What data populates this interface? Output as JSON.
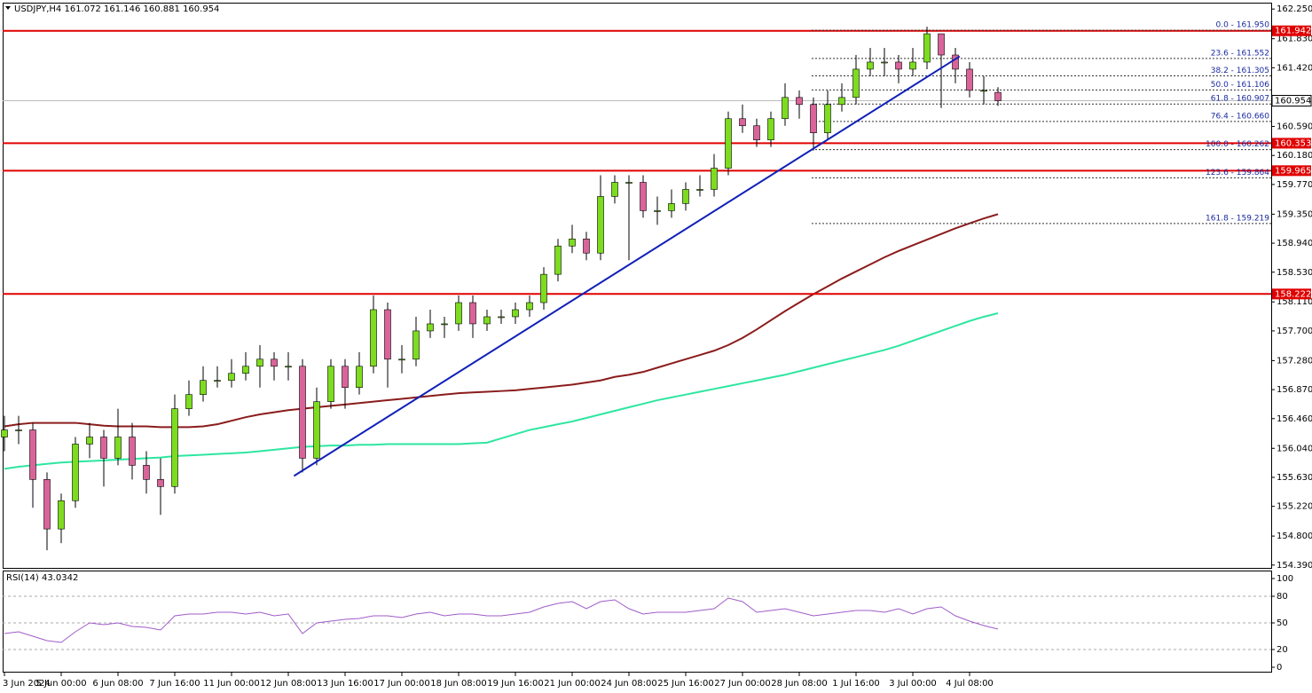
{
  "chart_data": [
    {
      "type": "candlestick",
      "title": "USDJPY,H4  161.072 161.146 160.881 160.954",
      "categories": [
        "3 Jun 2024",
        null,
        null,
        null,
        "5 Jun 00:00",
        null,
        null,
        null,
        "6 Jun 08:00",
        null,
        null,
        null,
        "7 Jun 16:00",
        null,
        null,
        null,
        "11 Jun 00:00",
        null,
        null,
        null,
        "12 Jun 08:00",
        null,
        null,
        null,
        "13 Jun 16:00",
        null,
        null,
        null,
        "17 Jun 00:00",
        null,
        null,
        null,
        "18 Jun 08:00",
        null,
        null,
        null,
        "19 Jun 16:00",
        null,
        null,
        null,
        "21 Jun 00:00",
        null,
        null,
        null,
        "24 Jun 08:00",
        null,
        null,
        null,
        "25 Jun 16:00",
        null,
        null,
        null,
        "27 Jun 00:00",
        null,
        null,
        null,
        "28 Jun 08:00",
        null,
        null,
        null,
        "1 Jul 16:00",
        null,
        null,
        null,
        "3 Jul 00:00",
        null,
        null,
        null,
        "4 Jul 08:00",
        null,
        null
      ],
      "open": [
        156.2,
        156.3,
        156.3,
        155.6,
        154.9,
        155.3,
        156.1,
        156.2,
        155.9,
        156.2,
        155.8,
        155.6,
        155.5,
        156.6,
        156.8,
        157.0,
        157.0,
        157.1,
        157.2,
        157.3,
        157.2,
        157.2,
        155.9,
        156.7,
        157.2,
        156.9,
        157.2,
        158.0,
        157.3,
        157.3,
        157.7,
        157.8,
        157.8,
        158.1,
        157.8,
        157.9,
        157.9,
        158.0,
        158.1,
        158.5,
        158.9,
        159.0,
        158.8,
        159.6,
        159.8,
        159.8,
        159.4,
        159.4,
        159.5,
        159.7,
        159.7,
        160.0,
        160.7,
        160.6,
        160.4,
        160.7,
        161.0,
        160.9,
        160.5,
        160.9,
        161.0,
        161.4,
        161.5,
        161.5,
        161.4,
        161.5,
        161.9,
        161.6,
        161.4,
        161.1,
        161.072
      ],
      "high": [
        156.5,
        156.5,
        156.4,
        155.7,
        155.4,
        156.2,
        156.4,
        156.3,
        156.6,
        156.4,
        156.0,
        155.9,
        156.8,
        157.0,
        157.2,
        157.2,
        157.3,
        157.4,
        157.5,
        157.4,
        157.4,
        157.3,
        156.9,
        157.3,
        157.3,
        157.4,
        158.2,
        158.1,
        157.5,
        157.9,
        158.0,
        157.9,
        158.2,
        158.2,
        158.0,
        158.0,
        158.1,
        158.2,
        158.6,
        159.0,
        159.2,
        159.1,
        159.9,
        159.9,
        159.9,
        159.9,
        159.6,
        159.7,
        159.8,
        159.9,
        160.2,
        160.8,
        160.9,
        160.7,
        160.8,
        161.2,
        161.1,
        161.0,
        161.1,
        161.2,
        161.6,
        161.7,
        161.7,
        161.6,
        161.7,
        162.0,
        161.9,
        161.7,
        161.5,
        161.3,
        161.146
      ],
      "low": [
        156.0,
        156.1,
        155.2,
        154.6,
        154.7,
        155.2,
        155.9,
        155.5,
        155.8,
        155.6,
        155.4,
        155.1,
        155.4,
        156.5,
        156.7,
        156.9,
        156.9,
        157.0,
        156.9,
        157.0,
        157.0,
        155.7,
        155.8,
        156.6,
        156.6,
        156.8,
        157.1,
        156.9,
        157.1,
        157.2,
        157.6,
        157.6,
        157.7,
        157.6,
        157.7,
        157.8,
        157.8,
        157.9,
        158.0,
        158.4,
        158.8,
        158.7,
        158.7,
        159.5,
        158.7,
        159.3,
        159.2,
        159.3,
        159.4,
        159.6,
        159.6,
        159.9,
        160.5,
        160.3,
        160.3,
        160.6,
        160.7,
        160.25,
        160.4,
        160.8,
        160.9,
        161.3,
        161.3,
        161.2,
        161.3,
        161.4,
        160.85,
        161.2,
        161.0,
        160.9,
        160.881
      ],
      "close": [
        156.3,
        156.3,
        155.6,
        154.9,
        155.3,
        156.1,
        156.2,
        155.9,
        156.2,
        155.8,
        155.6,
        155.5,
        156.6,
        156.8,
        157.0,
        157.0,
        157.1,
        157.2,
        157.3,
        157.2,
        157.2,
        155.9,
        156.7,
        157.2,
        156.9,
        157.2,
        158.0,
        157.3,
        157.3,
        157.7,
        157.8,
        157.8,
        158.1,
        157.8,
        157.9,
        157.9,
        158.0,
        158.1,
        158.5,
        158.9,
        159.0,
        158.8,
        159.6,
        159.8,
        159.8,
        159.4,
        159.4,
        159.5,
        159.7,
        159.7,
        160.0,
        160.7,
        160.6,
        160.4,
        160.7,
        161.0,
        160.9,
        160.5,
        160.9,
        161.0,
        161.4,
        161.5,
        161.5,
        161.4,
        161.5,
        161.9,
        161.6,
        161.4,
        161.1,
        161.1,
        160.954
      ],
      "bull_color": "#7ddc1f",
      "bear_color": "#d9649a",
      "series": [
        {
          "color": "#8b1c1c",
          "values": [
            156.35,
            156.38,
            156.4,
            156.4,
            156.4,
            156.4,
            156.38,
            156.36,
            156.35,
            156.35,
            156.35,
            156.34,
            156.34,
            156.34,
            156.35,
            156.38,
            156.43,
            156.48,
            156.52,
            156.55,
            156.58,
            156.6,
            156.62,
            156.64,
            156.66,
            156.68,
            156.7,
            156.72,
            156.74,
            156.76,
            156.78,
            156.8,
            156.82,
            156.83,
            156.84,
            156.85,
            156.86,
            156.88,
            156.9,
            156.92,
            156.94,
            156.97,
            157.0,
            157.05,
            157.08,
            157.12,
            157.18,
            157.24,
            157.3,
            157.36,
            157.42,
            157.5,
            157.6,
            157.72,
            157.85,
            157.98,
            158.1,
            158.22,
            158.33,
            158.44,
            158.54,
            158.64,
            158.74,
            158.83,
            158.91,
            158.99,
            159.07,
            159.15,
            159.22,
            159.29,
            159.35
          ]
        },
        {
          "color": "#2ee6a0",
          "values": [
            155.75,
            155.78,
            155.8,
            155.82,
            155.84,
            155.85,
            155.86,
            155.87,
            155.88,
            155.89,
            155.9,
            155.91,
            155.93,
            155.94,
            155.95,
            155.96,
            155.97,
            155.98,
            156.0,
            156.02,
            156.04,
            156.06,
            156.07,
            156.08,
            156.08,
            156.09,
            156.09,
            156.1,
            156.1,
            156.1,
            156.1,
            156.1,
            156.1,
            156.11,
            156.12,
            156.18,
            156.24,
            156.3,
            156.34,
            156.38,
            156.42,
            156.47,
            156.52,
            156.57,
            156.62,
            156.67,
            156.72,
            156.76,
            156.8,
            156.84,
            156.88,
            156.92,
            156.96,
            157.0,
            157.04,
            157.08,
            157.13,
            157.18,
            157.23,
            157.28,
            157.33,
            157.38,
            157.43,
            157.49,
            157.56,
            157.63,
            157.7,
            157.77,
            157.84,
            157.9,
            157.95
          ]
        }
      ],
      "ylim": [
        154.35,
        162.34
      ],
      "yticks": [
        {
          "value": 162.25,
          "label": "162.250"
        },
        {
          "value": 161.83,
          "label": "161.830"
        },
        {
          "value": 161.42,
          "label": "161.420"
        },
        {
          "value": 160.59,
          "label": "160.590"
        },
        {
          "value": 160.18,
          "label": "160.180"
        },
        {
          "value": 159.77,
          "label": "159.770"
        },
        {
          "value": 159.35,
          "label": "159.350"
        },
        {
          "value": 158.94,
          "label": "158.940"
        },
        {
          "value": 158.53,
          "label": "158.530"
        },
        {
          "value": 158.11,
          "label": "158.110"
        },
        {
          "value": 157.7,
          "label": "157.700"
        },
        {
          "value": 157.28,
          "label": "157.280"
        },
        {
          "value": 156.87,
          "label": "156.870"
        },
        {
          "value": 156.46,
          "label": "156.460"
        },
        {
          "value": 156.04,
          "label": "156.040"
        },
        {
          "value": 155.63,
          "label": "155.630"
        },
        {
          "value": 155.22,
          "label": "155.220"
        },
        {
          "value": 154.8,
          "label": "154.800"
        },
        {
          "value": 154.39,
          "label": "154.390"
        }
      ],
      "levels": [
        {
          "value": 161.942,
          "color": "#e00000"
        },
        {
          "value": 160.353,
          "color": "#e00000"
        },
        {
          "value": 159.965,
          "color": "#e00000"
        },
        {
          "value": 158.222,
          "color": "#e00000"
        }
      ],
      "last_price": 160.954,
      "fib_levels": [
        {
          "value": 161.95,
          "label": "0.0 - 161.950"
        },
        {
          "value": 161.552,
          "label": "23.6 - 161.552"
        },
        {
          "value": 161.305,
          "label": "38.2 - 161.305"
        },
        {
          "value": 161.106,
          "label": "50.0 - 161.106"
        },
        {
          "value": 160.907,
          "label": "61.8 - 160.907"
        },
        {
          "value": 160.66,
          "label": "76.4 - 160.660"
        },
        {
          "value": 160.262,
          "label": "100.0 - 160.262"
        },
        {
          "value": 159.864,
          "label": "123.6 - 159.864"
        },
        {
          "value": 159.219,
          "label": "161.8 - 159.219"
        }
      ],
      "trendline": {
        "color": "#1020b8",
        "x": [
          20.4,
          67.3
        ],
        "y": [
          155.65,
          161.58
        ]
      }
    },
    {
      "type": "line",
      "title": "RSI(14) 43.0342",
      "color": "#a05cc8",
      "values": [
        38,
        40,
        35,
        30,
        28,
        40,
        50,
        48,
        50,
        46,
        45,
        42,
        58,
        60,
        60,
        62,
        62,
        60,
        62,
        58,
        60,
        38,
        50,
        52,
        54,
        55,
        58,
        58,
        56,
        60,
        62,
        58,
        60,
        60,
        58,
        58,
        60,
        62,
        68,
        72,
        74,
        66,
        74,
        76,
        66,
        60,
        62,
        62,
        62,
        64,
        66,
        78,
        74,
        62,
        64,
        66,
        62,
        58,
        60,
        62,
        64,
        64,
        62,
        66,
        60,
        66,
        68,
        58,
        52,
        47,
        43.0342
      ],
      "ylim": [
        -5,
        108
      ],
      "yticks": [
        0,
        20,
        50,
        80,
        100
      ],
      "grid": [
        20,
        50,
        80
      ]
    }
  ]
}
